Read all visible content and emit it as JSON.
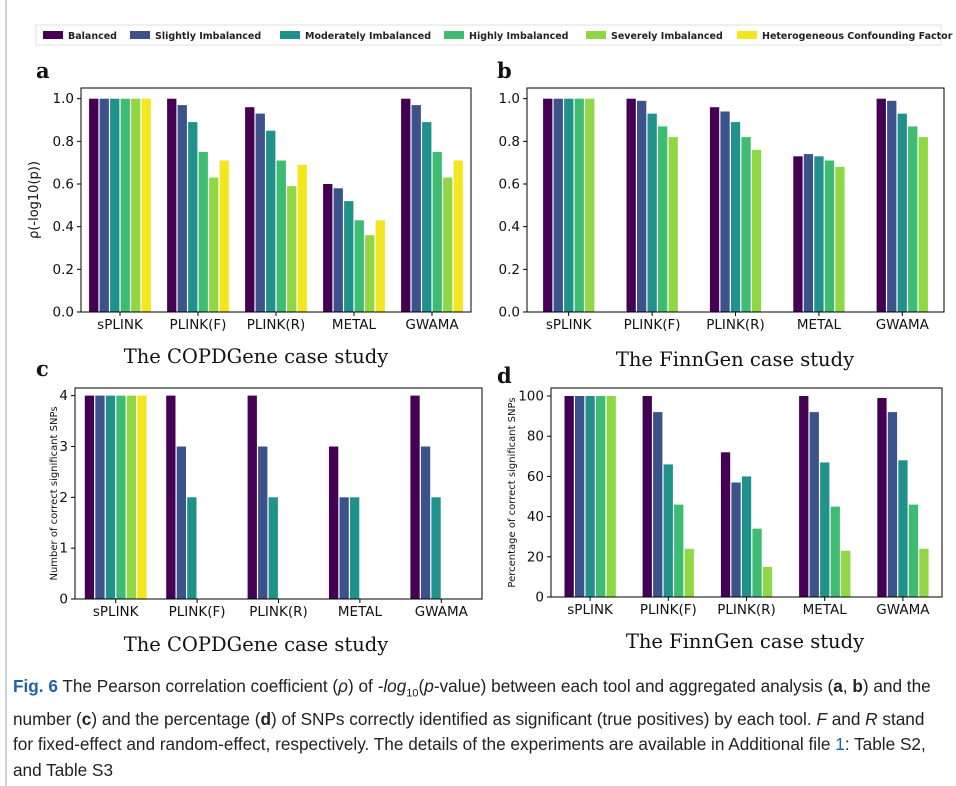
{
  "legend": [
    {
      "name": "Balanced",
      "color": "#440154"
    },
    {
      "name": "Slightly Imbalanced",
      "color": "#3b528b"
    },
    {
      "name": "Moderately Imbalanced",
      "color": "#21918c"
    },
    {
      "name": "Highly Imbalanced",
      "color": "#3fbc73"
    },
    {
      "name": "Severely Imbalanced",
      "color": "#8fd744"
    },
    {
      "name": "Heterogeneous Confounding Factor",
      "color": "#f3e51e"
    }
  ],
  "chart_data": [
    {
      "panel": "a",
      "type": "bar",
      "categories": [
        "sPLINK",
        "PLINK(F)",
        "PLINK(R)",
        "METAL",
        "GWAMA"
      ],
      "ylabel": "ρ(-log10(p))",
      "subtitle": "The COPDGene case study",
      "ylim": [
        0,
        1.05
      ],
      "yticks": [
        "0.0",
        "0.2",
        "0.4",
        "0.6",
        "0.8",
        "1.0"
      ],
      "series": [
        {
          "name": "Balanced",
          "values": [
            1.0,
            1.0,
            0.96,
            0.6,
            1.0
          ]
        },
        {
          "name": "Slightly Imbalanced",
          "values": [
            1.0,
            0.97,
            0.93,
            0.58,
            0.97
          ]
        },
        {
          "name": "Moderately Imbalanced",
          "values": [
            1.0,
            0.89,
            0.85,
            0.52,
            0.89
          ]
        },
        {
          "name": "Highly Imbalanced",
          "values": [
            1.0,
            0.75,
            0.71,
            0.43,
            0.75
          ]
        },
        {
          "name": "Severely Imbalanced",
          "values": [
            1.0,
            0.63,
            0.59,
            0.36,
            0.63
          ]
        },
        {
          "name": "Heterogeneous Confounding Factor",
          "values": [
            1.0,
            0.71,
            0.69,
            0.43,
            0.71
          ]
        }
      ]
    },
    {
      "panel": "b",
      "type": "bar",
      "categories": [
        "sPLINK",
        "PLINK(F)",
        "PLINK(R)",
        "METAL",
        "GWAMA"
      ],
      "ylabel": "",
      "subtitle": "The FinnGen case study",
      "ylim": [
        0,
        1.05
      ],
      "yticks": [
        "0.0",
        "0.2",
        "0.4",
        "0.6",
        "0.8",
        "1.0"
      ],
      "series": [
        {
          "name": "Balanced",
          "values": [
            1.0,
            1.0,
            0.96,
            0.73,
            1.0
          ]
        },
        {
          "name": "Slightly Imbalanced",
          "values": [
            1.0,
            0.99,
            0.94,
            0.74,
            0.99
          ]
        },
        {
          "name": "Moderately Imbalanced",
          "values": [
            1.0,
            0.93,
            0.89,
            0.73,
            0.93
          ]
        },
        {
          "name": "Highly Imbalanced",
          "values": [
            1.0,
            0.87,
            0.82,
            0.71,
            0.87
          ]
        },
        {
          "name": "Severely Imbalanced",
          "values": [
            1.0,
            0.82,
            0.76,
            0.68,
            0.82
          ]
        }
      ]
    },
    {
      "panel": "c",
      "type": "bar",
      "categories": [
        "sPLINK",
        "PLINK(F)",
        "PLINK(R)",
        "METAL",
        "GWAMA"
      ],
      "ylabel": "Number of correct significant SNPs",
      "subtitle": "The COPDGene case study",
      "ylim": [
        0,
        4.15
      ],
      "yticks": [
        "0",
        "1",
        "2",
        "3",
        "4"
      ],
      "series": [
        {
          "name": "Balanced",
          "values": [
            4,
            4,
            4,
            3,
            4
          ]
        },
        {
          "name": "Slightly Imbalanced",
          "values": [
            4,
            3,
            3,
            2,
            3
          ]
        },
        {
          "name": "Moderately Imbalanced",
          "values": [
            4,
            2,
            2,
            2,
            2
          ]
        },
        {
          "name": "Highly Imbalanced",
          "values": [
            4,
            0,
            0,
            0,
            0
          ]
        },
        {
          "name": "Severely Imbalanced",
          "values": [
            4,
            0,
            0,
            0,
            0
          ]
        },
        {
          "name": "Heterogeneous Confounding Factor",
          "values": [
            4,
            0,
            0,
            0,
            0
          ]
        }
      ]
    },
    {
      "panel": "d",
      "type": "bar",
      "categories": [
        "sPLINK",
        "PLINK(F)",
        "PLINK(R)",
        "METAL",
        "GWAMA"
      ],
      "ylabel": "Percentage of correct significant SNPs",
      "subtitle": "The FinnGen case study",
      "ylim": [
        0,
        104
      ],
      "yticks": [
        "0",
        "20",
        "40",
        "60",
        "80",
        "100"
      ],
      "series": [
        {
          "name": "Balanced",
          "values": [
            100,
            100,
            72,
            100,
            99
          ]
        },
        {
          "name": "Slightly Imbalanced",
          "values": [
            100,
            92,
            57,
            92,
            92
          ]
        },
        {
          "name": "Moderately Imbalanced",
          "values": [
            100,
            66,
            60,
            67,
            68
          ]
        },
        {
          "name": "Highly Imbalanced",
          "values": [
            100,
            46,
            34,
            45,
            46
          ]
        },
        {
          "name": "Severely Imbalanced",
          "values": [
            100,
            24,
            15,
            23,
            24
          ]
        }
      ]
    }
  ],
  "caption": {
    "label": "Fig. 6",
    "t1": " The Pearson correlation coefficient (",
    "rho": "ρ",
    "t2": ") of ",
    "log": "-log",
    "sub": "10",
    "t3": "(",
    "p": "p",
    "t4": "-value) between each tool and aggregated analysis (",
    "a": "a",
    "comma": ", ",
    "b": "b",
    "t5": ") and the number (",
    "c": "c",
    "t6": ") and the percentage (",
    "d": "d",
    "t7": ") of SNPs correctly identified as significant (true positives) by each tool. ",
    "F": "F",
    "t8": " and ",
    "R": "R",
    "t9": " stand for fixed-effect and random-effect, respectively. The details of the experiments are available in Additional file ",
    "file": "1",
    "t10": ": Table S2, and Table S3"
  }
}
